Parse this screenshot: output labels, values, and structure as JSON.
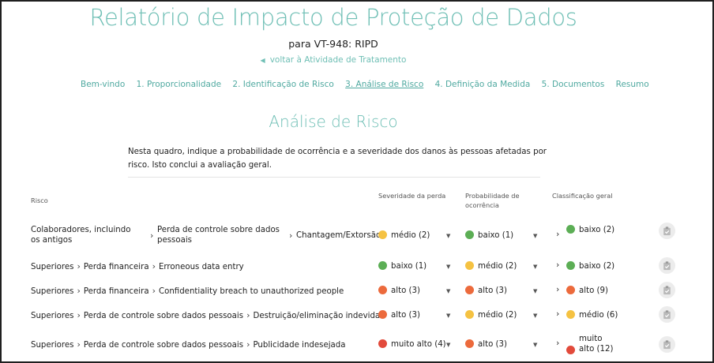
{
  "page": {
    "title": "Relatório de Impacto de Proteção de Dados",
    "subtitle": "para VT-948: RIPD",
    "back_link": "voltar à Atividade de Tratamento"
  },
  "nav": [
    {
      "label": "Bem-vindo",
      "active": false
    },
    {
      "label": "1. Proporcionalidade",
      "active": false
    },
    {
      "label": "2. Identificação de Risco",
      "active": false
    },
    {
      "label": "3. Análise de Risco",
      "active": true
    },
    {
      "label": "4. Definição da Medida",
      "active": false
    },
    {
      "label": "5. Documentos",
      "active": false
    },
    {
      "label": "Resumo",
      "active": false
    }
  ],
  "section": {
    "title": "Análise de Risco",
    "intro": "Nesta quadro, indique a probabilidade de ocorrência e a severidade dos danos às pessoas afetadas por risco. Isto conclui a avaliação geral."
  },
  "table": {
    "headers": {
      "risk": "Risco",
      "severity": "Severidade da perda",
      "probability": "Probabilidade de ocorrência",
      "overall": "Classificação geral"
    },
    "rows": [
      {
        "risk_path": [
          "Colaboradores, incluindo os antigos",
          "Perda de controle sobre dados pessoais",
          "Chantagem/Extorsão"
        ],
        "severity": {
          "label": "médio (2)",
          "color": "#f5c242"
        },
        "probability": {
          "label": "baixo (1)",
          "color": "#5cae55"
        },
        "overall": {
          "label": "baixo (2)",
          "color": "#5cae55"
        }
      },
      {
        "risk_path": [
          "Superiores",
          "Perda financeira",
          "Erroneous data entry"
        ],
        "severity": {
          "label": "baixo (1)",
          "color": "#5cae55"
        },
        "probability": {
          "label": "médio (2)",
          "color": "#f5c242"
        },
        "overall": {
          "label": "baixo (2)",
          "color": "#5cae55"
        }
      },
      {
        "risk_path": [
          "Superiores",
          "Perda financeira",
          "Confidentiality breach to unauthorized people"
        ],
        "severity": {
          "label": "alto (3)",
          "color": "#ec6a3c"
        },
        "probability": {
          "label": "alto (3)",
          "color": "#ec6a3c"
        },
        "overall": {
          "label": "alto (9)",
          "color": "#ec6a3c"
        }
      },
      {
        "risk_path": [
          "Superiores",
          "Perda de controle sobre dados pessoais",
          "Destruição/eliminação indevida"
        ],
        "severity": {
          "label": "alto (3)",
          "color": "#ec6a3c"
        },
        "probability": {
          "label": "médio (2)",
          "color": "#f5c242"
        },
        "overall": {
          "label": "médio (6)",
          "color": "#f5c242"
        }
      },
      {
        "risk_path": [
          "Superiores",
          "Perda de controle sobre dados pessoais",
          "Publicidade indesejada"
        ],
        "severity": {
          "label": "muito alto (4)",
          "color": "#e24a3b"
        },
        "probability": {
          "label": "alto (3)",
          "color": "#ec6a3c"
        },
        "overall": {
          "label": "muito alto (12)",
          "color": "#e24a3b"
        }
      }
    ]
  },
  "icons": {
    "caret": "caret-down-icon",
    "arrow": "chevron-right-icon",
    "check": "clipboard-check-icon"
  }
}
